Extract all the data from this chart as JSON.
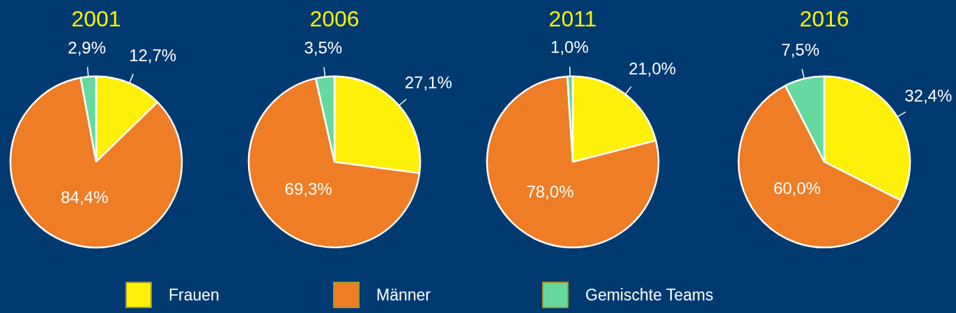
{
  "chart_data": [
    {
      "type": "pie",
      "title": "2001",
      "categories": [
        "Frauen",
        "Männer",
        "Gemischte Teams"
      ],
      "values": [
        12.7,
        84.4,
        2.9
      ],
      "value_labels": [
        "12,7%",
        "84,4%",
        "2,9%"
      ],
      "colors": [
        "#fff00a",
        "#ee7d26",
        "#66d9a0"
      ],
      "legend": "bottom"
    },
    {
      "type": "pie",
      "title": "2006",
      "categories": [
        null,
        null,
        null
      ],
      "values": [
        27.1,
        69.3,
        3.5
      ],
      "value_labels": [
        "27,1%",
        "69,3%",
        "3,5%"
      ],
      "colors": [
        "#fff00a",
        "#ee7d26",
        "#66d9a0"
      ]
    },
    {
      "type": "pie",
      "title": "2011",
      "categories": [
        null,
        null,
        null
      ],
      "values": [
        21.0,
        78.0,
        1.0
      ],
      "value_labels": [
        "21,0%",
        "78,0%",
        "1,0%"
      ],
      "colors": [
        "#fff00a",
        "#ee7d26",
        "#66d9a0"
      ]
    },
    {
      "type": "pie",
      "title": "2016",
      "categories": [
        null,
        null,
        null
      ],
      "values": [
        32.4,
        60.0,
        7.5
      ],
      "value_labels": [
        "32,4%",
        "60,0%",
        "7,5%"
      ],
      "colors": [
        "#fff00a",
        "#ee7d26",
        "#66d9a0"
      ]
    }
  ]
}
